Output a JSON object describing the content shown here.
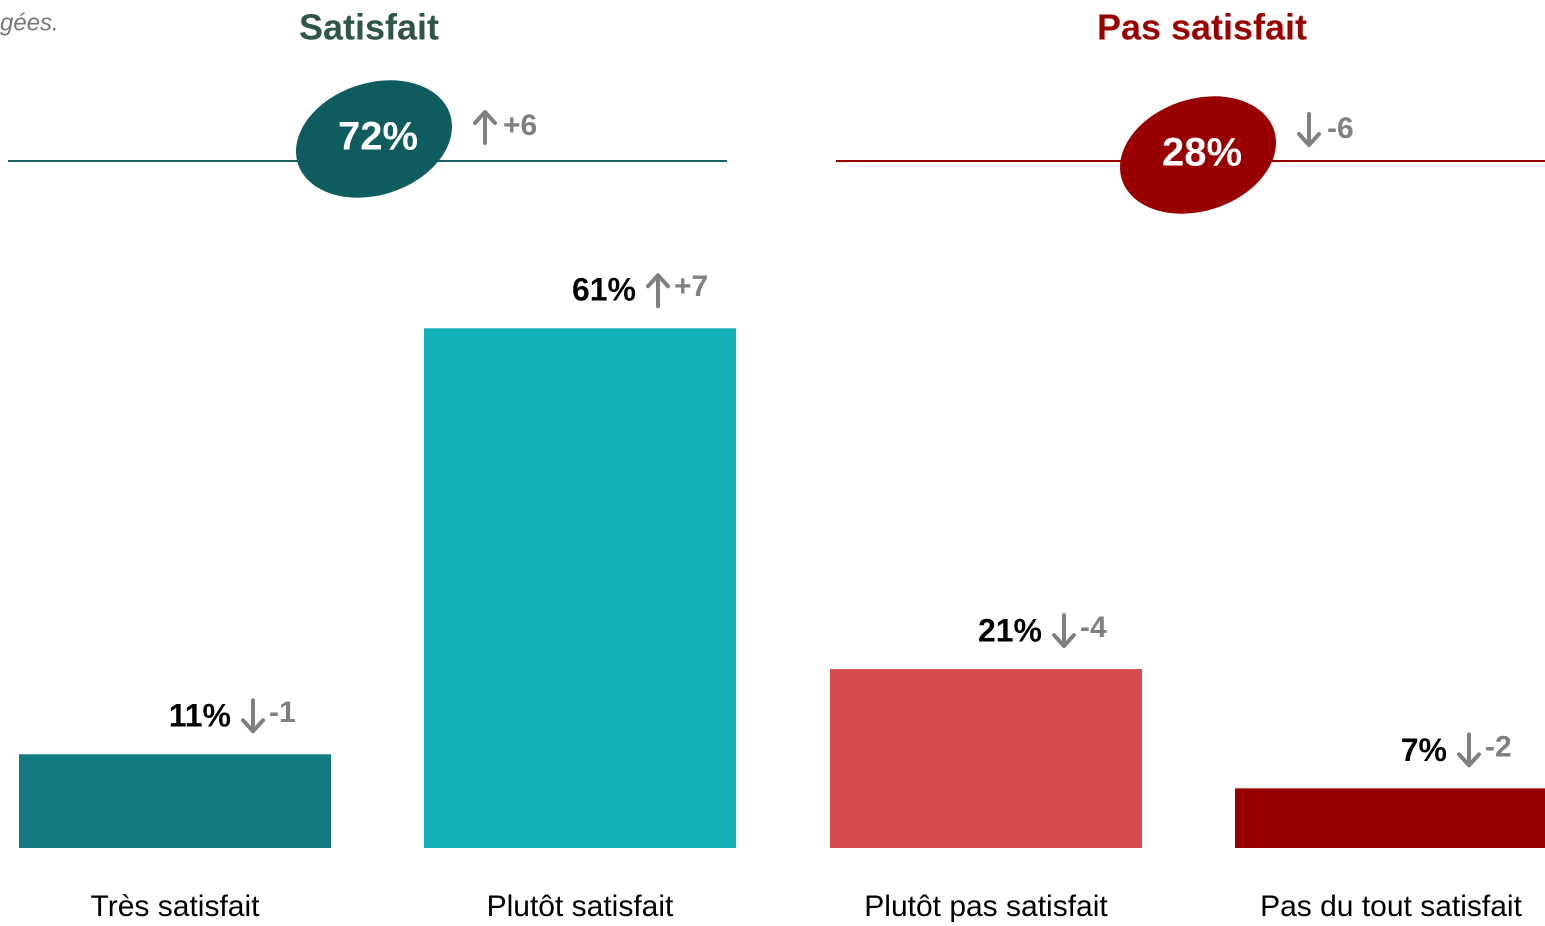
{
  "chart_data": {
    "type": "bar",
    "annotation": "gées.",
    "groups": [
      {
        "title": "Satisfait",
        "value": 72,
        "value_label": "72%",
        "change": 6,
        "change_label": "+6",
        "color": "#0f5c5e",
        "title_color": "#2f5548",
        "line_color": "#1a6060"
      },
      {
        "title": "Pas satisfait",
        "value": 28,
        "value_label": "28%",
        "change": -6,
        "change_label": "-6",
        "color": "#990000",
        "title_color": "#990000",
        "line_color": "#990000"
      }
    ],
    "categories": [
      "Très satisfait",
      "Plutôt satisfait",
      "Plutôt pas satisfait",
      "Pas du tout satisfait"
    ],
    "values": [
      11,
      61,
      21,
      7
    ],
    "value_labels": [
      "11%",
      "61%",
      "21%",
      "7%"
    ],
    "changes": [
      -1,
      7,
      -4,
      -2
    ],
    "change_labels": [
      "-1",
      "+7",
      "-4",
      "-2"
    ],
    "colors": [
      "#127a80",
      "#14b0b8",
      "#d84c50",
      "#990000"
    ]
  }
}
